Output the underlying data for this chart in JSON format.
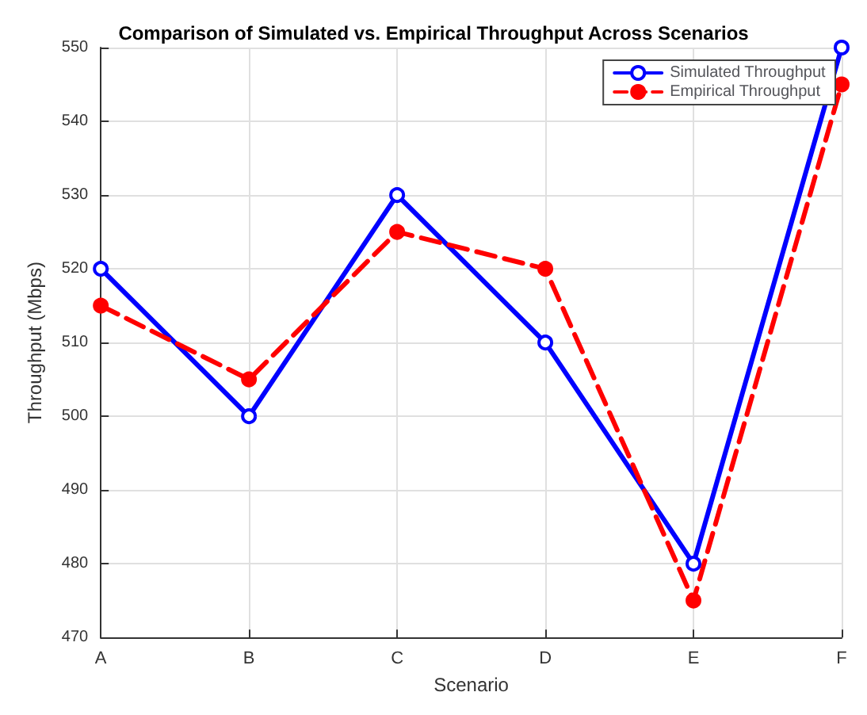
{
  "chart_data": {
    "type": "line",
    "title": "Comparison of Simulated vs. Empirical Throughput Across Scenarios",
    "xlabel": "Scenario",
    "ylabel": "Throughput (Mbps)",
    "categories": [
      "A",
      "B",
      "C",
      "D",
      "E",
      "F"
    ],
    "series": [
      {
        "name": "Simulated Throughput",
        "color": "#0000ff",
        "values": [
          520,
          500,
          530,
          510,
          480,
          550
        ],
        "line_style": "solid",
        "marker": "circle"
      },
      {
        "name": "Empirical Throughput",
        "color": "#ff0000",
        "values": [
          515,
          505,
          525,
          520,
          475,
          545
        ],
        "line_style": "dashed",
        "marker": "circle"
      }
    ],
    "ylim": [
      470,
      550
    ],
    "yticks": [
      470,
      480,
      490,
      500,
      510,
      520,
      530,
      540,
      550
    ],
    "grid": true,
    "legend": "top right"
  }
}
